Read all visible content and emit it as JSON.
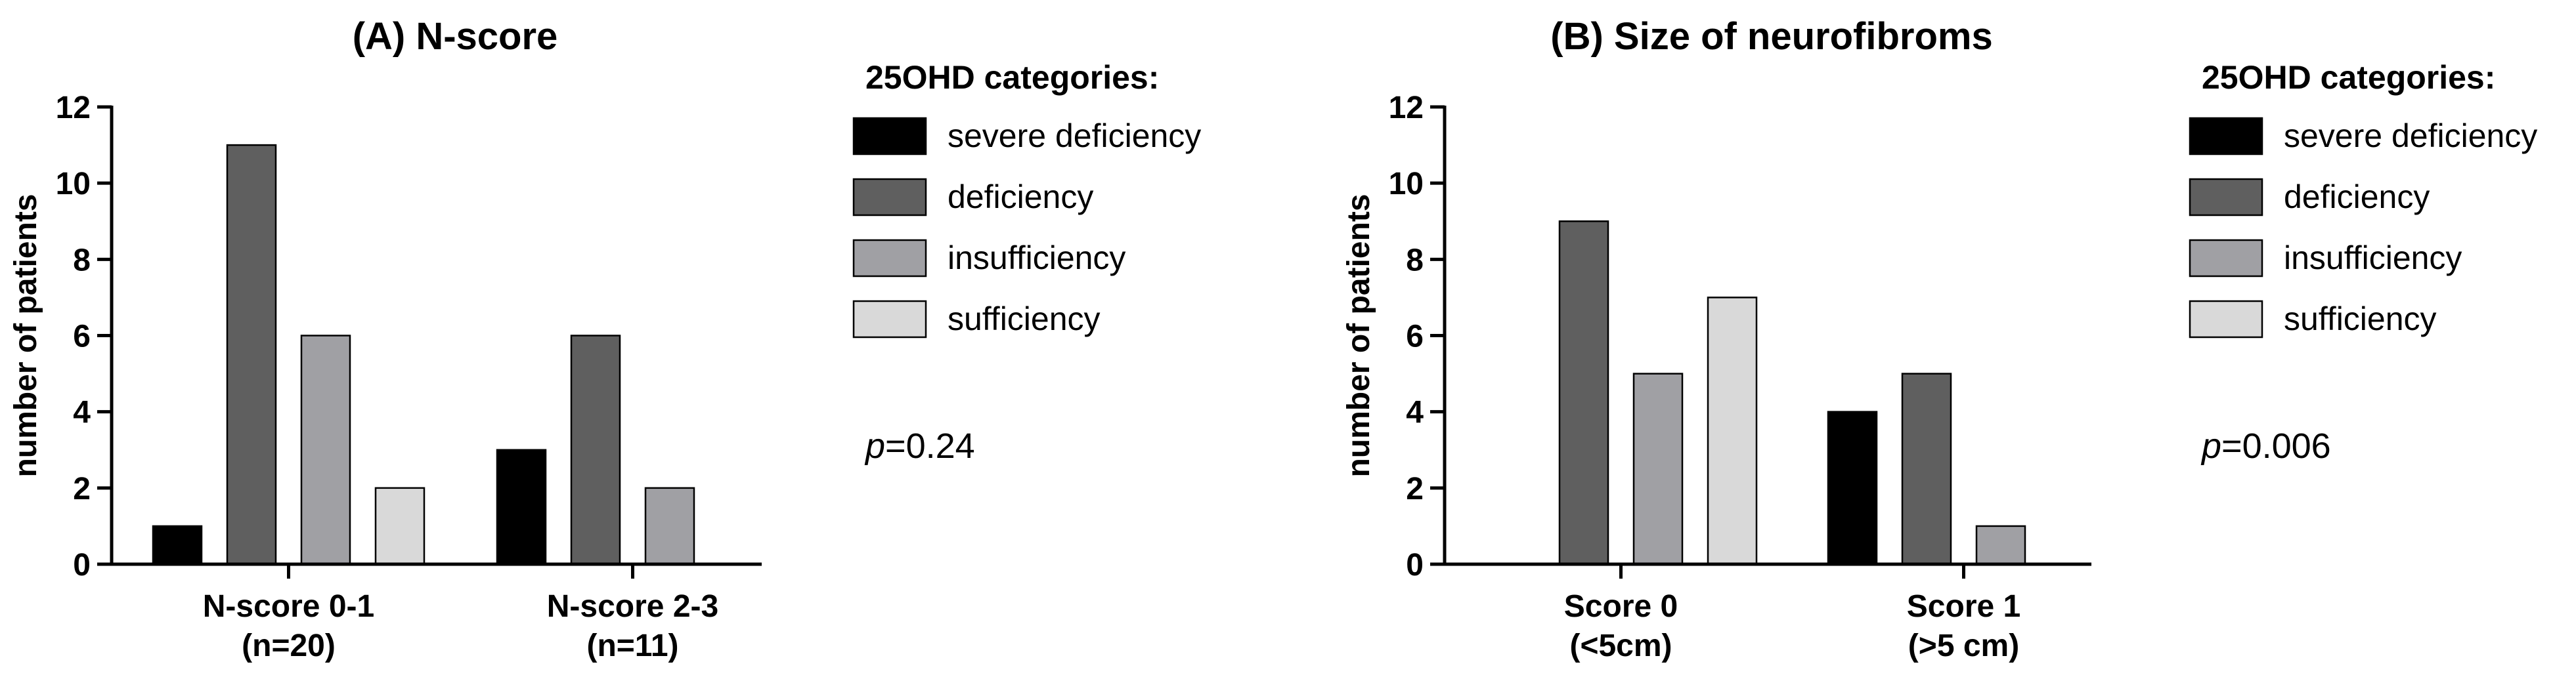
{
  "colors": {
    "severe deficiency": "#000000",
    "deficiency": "#5f5f5f",
    "insufficiency": "#a0a0a4",
    "sufficiency": "#d9d9d9"
  },
  "chart_data": [
    {
      "type": "bar",
      "title": "(A) N-score",
      "ylabel": "number of patients",
      "xlabel": "",
      "ylim": [
        0,
        12
      ],
      "yticks": [
        "0",
        "2",
        "4",
        "6",
        "8",
        "10",
        "12"
      ],
      "categories": [
        {
          "line1": "N-score 0-1",
          "line2": "(n=20)"
        },
        {
          "line1": "N-score 2-3",
          "line2": "(n=11)"
        }
      ],
      "legend_title": "25OHD categories:",
      "legend_placement": "right",
      "series": [
        {
          "name": "severe deficiency",
          "values": [
            1,
            3
          ]
        },
        {
          "name": "deficiency",
          "values": [
            11,
            6
          ]
        },
        {
          "name": "insufficiency",
          "values": [
            6,
            2
          ]
        },
        {
          "name": "sufficiency",
          "values": [
            2,
            0
          ]
        }
      ],
      "annotation": {
        "italic": "p",
        "text": "=0.24"
      }
    },
    {
      "type": "bar",
      "title": "(B) Size of neurofibroms",
      "ylabel": "number of patients",
      "xlabel": "",
      "ylim": [
        0,
        12
      ],
      "yticks": [
        "0",
        "2",
        "4",
        "6",
        "8",
        "10",
        "12"
      ],
      "categories": [
        {
          "line1": "Score 0",
          "line2": "(<5cm)"
        },
        {
          "line1": "Score 1",
          "line2": "(>5 cm)"
        }
      ],
      "legend_title": "25OHD categories:",
      "legend_placement": "right",
      "series": [
        {
          "name": "severe deficiency",
          "values": [
            0,
            4
          ]
        },
        {
          "name": "deficiency",
          "values": [
            9,
            5
          ]
        },
        {
          "name": "insufficiency",
          "values": [
            5,
            1
          ]
        },
        {
          "name": "sufficiency",
          "values": [
            7,
            0
          ]
        }
      ],
      "annotation": {
        "italic": "p",
        "text": "=0.006"
      }
    }
  ]
}
